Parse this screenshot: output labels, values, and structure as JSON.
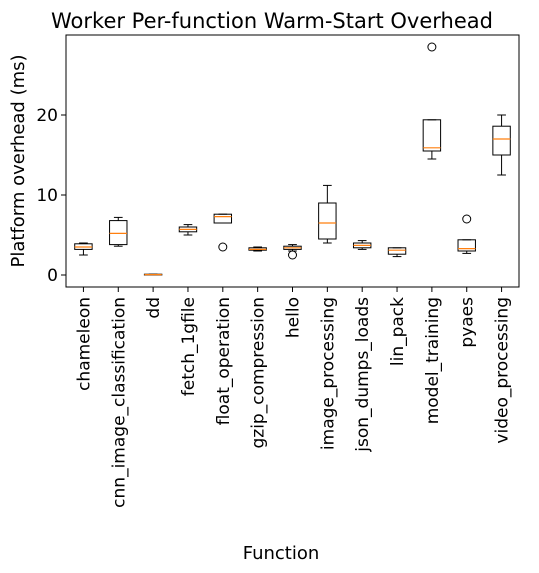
{
  "chart_data": {
    "type": "boxplot",
    "title": "Worker Per-function Warm-Start Overhead",
    "xlabel": "Function",
    "ylabel": "Platform overhead (ms)",
    "ylim": [
      -1.5,
      30
    ],
    "yticks": [
      0,
      10,
      20
    ],
    "grid": false,
    "legend": "none",
    "colors": {
      "box": "#000000",
      "median": "#ff7f0e",
      "flier": "#000000"
    },
    "categories": [
      "chameleon",
      "cnn_image_classification",
      "dd",
      "fetch_1gfile",
      "float_operation",
      "gzip_compression",
      "hello",
      "image_processing",
      "json_dumps_loads",
      "lin_pack",
      "model_training",
      "pyaes",
      "video_processing"
    ],
    "boxes": [
      {
        "whisker_low": 2.5,
        "q1": 3.2,
        "median": 3.5,
        "q3": 3.9,
        "whisker_high": 4.0,
        "fliers": []
      },
      {
        "whisker_low": 3.6,
        "q1": 3.8,
        "median": 5.2,
        "q3": 6.8,
        "whisker_high": 7.2,
        "fliers": []
      },
      {
        "whisker_low": 0.0,
        "q1": 0.0,
        "median": 0.05,
        "q3": 0.1,
        "whisker_high": 0.1,
        "fliers": []
      },
      {
        "whisker_low": 5.0,
        "q1": 5.4,
        "median": 5.7,
        "q3": 6.0,
        "whisker_high": 6.3,
        "fliers": []
      },
      {
        "whisker_low": 6.5,
        "q1": 6.5,
        "median": 7.3,
        "q3": 7.6,
        "whisker_high": 7.6,
        "fliers": [
          3.5
        ]
      },
      {
        "whisker_low": 3.0,
        "q1": 3.1,
        "median": 3.2,
        "q3": 3.4,
        "whisker_high": 3.5,
        "fliers": []
      },
      {
        "whisker_low": 3.0,
        "q1": 3.2,
        "median": 3.4,
        "q3": 3.6,
        "whisker_high": 3.8,
        "fliers": [
          2.5
        ]
      },
      {
        "whisker_low": 4.0,
        "q1": 4.5,
        "median": 6.5,
        "q3": 9.0,
        "whisker_high": 11.2,
        "fliers": []
      },
      {
        "whisker_low": 3.2,
        "q1": 3.4,
        "median": 3.7,
        "q3": 4.0,
        "whisker_high": 4.3,
        "fliers": []
      },
      {
        "whisker_low": 2.3,
        "q1": 2.6,
        "median": 3.1,
        "q3": 3.4,
        "whisker_high": 3.4,
        "fliers": []
      },
      {
        "whisker_low": 14.5,
        "q1": 15.5,
        "median": 15.9,
        "q3": 19.4,
        "whisker_high": 19.4,
        "fliers": [
          28.5
        ]
      },
      {
        "whisker_low": 2.7,
        "q1": 3.0,
        "median": 3.3,
        "q3": 4.4,
        "whisker_high": 4.4,
        "fliers": [
          7.0
        ]
      },
      {
        "whisker_low": 12.5,
        "q1": 15.0,
        "median": 17.0,
        "q3": 18.6,
        "whisker_high": 20.0,
        "fliers": []
      }
    ]
  }
}
